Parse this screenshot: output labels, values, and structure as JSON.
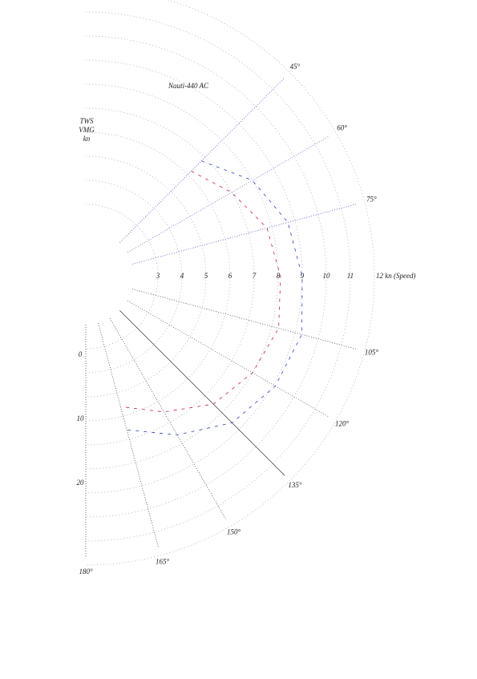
{
  "chart_data": {
    "type": "polar",
    "title": "Nauti-440 AC",
    "legend_labels": [
      "TWS",
      "VMG",
      "kn"
    ],
    "side_labels": [
      "0",
      "10",
      "20"
    ],
    "rlim": [
      0,
      12
    ],
    "rticks": [
      3,
      4,
      5,
      6,
      7,
      8,
      9,
      10,
      11,
      {
        "value": 12,
        "label": "12 kn (Speed)"
      }
    ],
    "thetaticks": [
      {
        "value": 45,
        "label": "45°"
      },
      {
        "value": 60,
        "label": "60°"
      },
      {
        "value": 75,
        "label": "75°"
      },
      {
        "value": 105,
        "label": "105°"
      },
      {
        "value": 120,
        "label": "120°"
      },
      {
        "value": 135,
        "label": "135°"
      },
      {
        "value": 150,
        "label": "150°"
      },
      {
        "value": 165,
        "label": "165°"
      },
      {
        "value": 180,
        "label": "180°"
      }
    ],
    "x": [
      45,
      60,
      75,
      90,
      105,
      120,
      135,
      150,
      165
    ],
    "series": [
      {
        "color": "#d02040",
        "values": [
          6.2,
          7.0,
          7.8,
          8.1,
          8.3,
          8.0,
          7.5,
          6.5,
          5.6
        ]
      },
      {
        "color": "#3040c0",
        "values": [
          6.8,
          8.0,
          8.7,
          9.0,
          9.3,
          9.1,
          8.6,
          7.6,
          6.6
        ]
      }
    ]
  }
}
